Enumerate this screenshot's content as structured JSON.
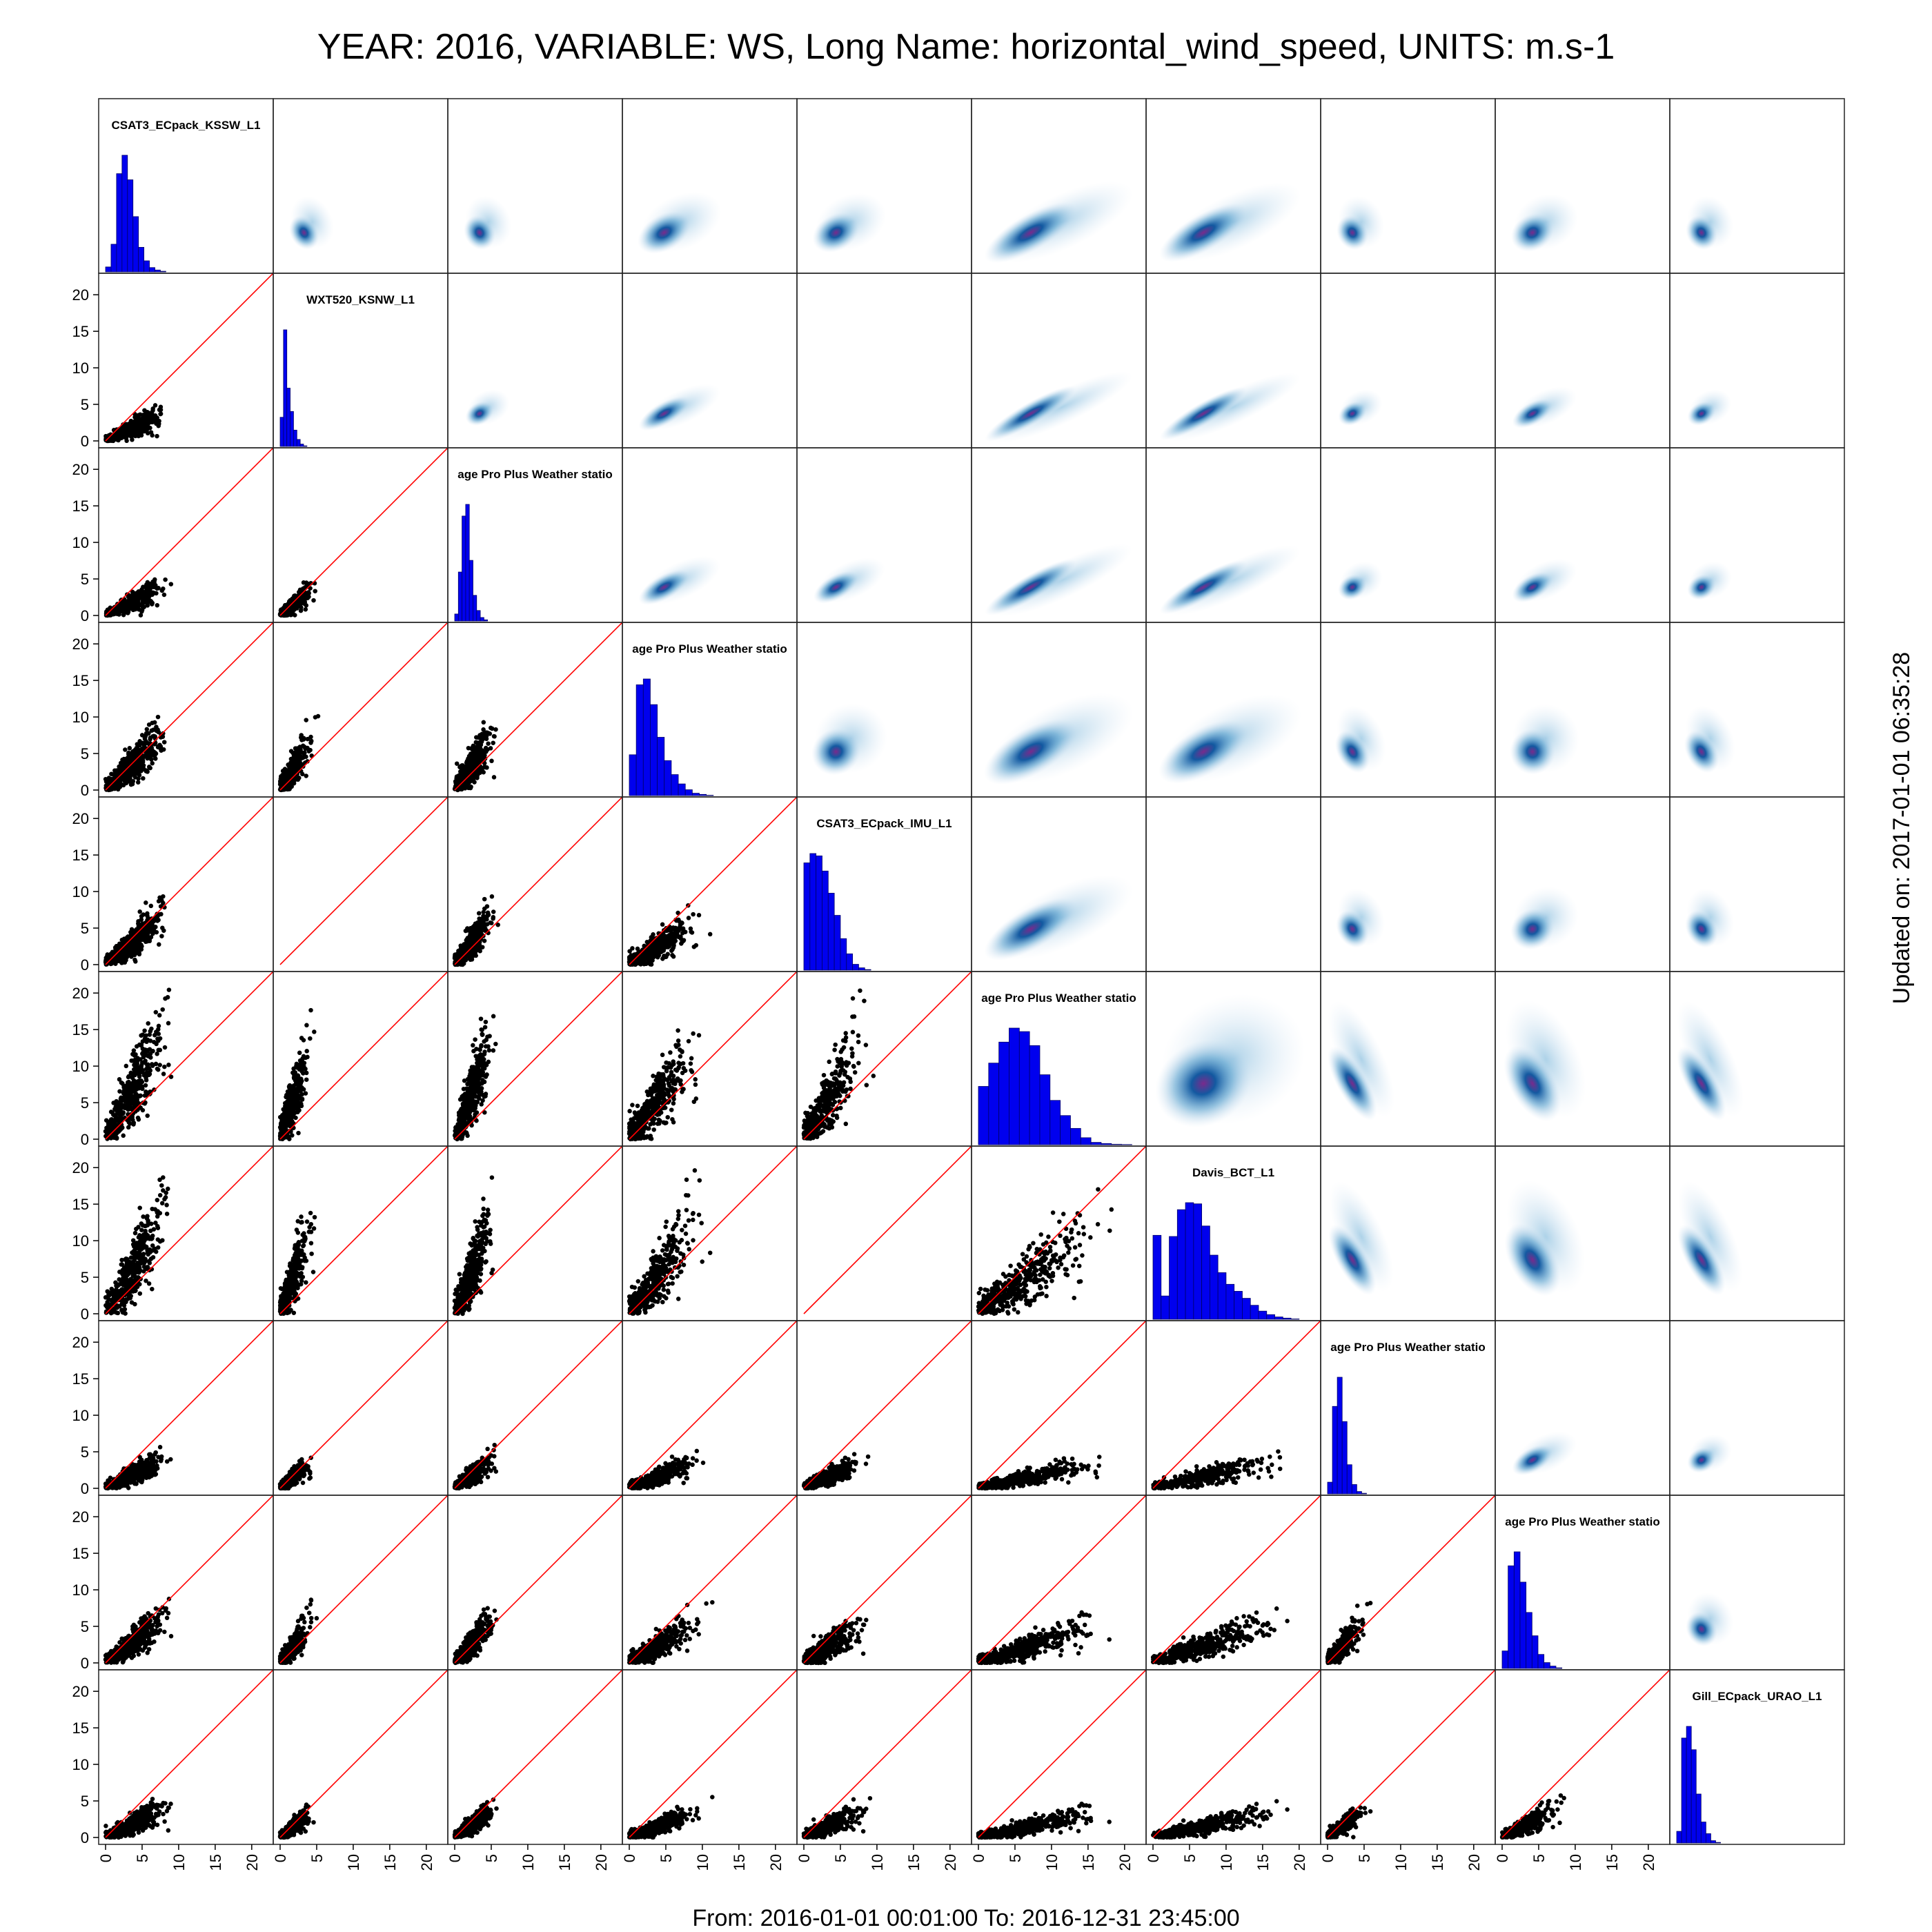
{
  "header": {
    "title": "YEAR: 2016, VARIABLE: WS, Long Name: horizontal_wind_speed, UNITS: m.s-1"
  },
  "footer": {
    "range": "From: 2016-01-01 00:01:00 To: 2016-12-31 23:45:00"
  },
  "side": {
    "updated": "Updated on: 2017-01-01 06:35:28"
  },
  "colors": {
    "histogram_fill": "#0000ee",
    "scatter_point": "#000000",
    "identity_line": "#ff0000",
    "density_low": "#c6dbef",
    "density_mid": "#08519c",
    "density_high": "#7a2a8c"
  },
  "chart_data": {
    "type": "scatter",
    "layout": "scatterplot-matrix",
    "upper_panels": "2d-density",
    "diagonal_panels": "histogram",
    "lower_panels": "scatter with 1:1 line",
    "grid": false,
    "xlim": [
      0,
      22
    ],
    "ylim": [
      0,
      22
    ],
    "x_ticks": [
      0,
      5,
      10,
      15,
      20
    ],
    "y_ticks": [
      0,
      5,
      10,
      15,
      20
    ],
    "variables": [
      "CSAT3_ECpack_KSSW_L1",
      "WXT520_KSNW_L1",
      "age Pro Plus Weather statio",
      "age Pro Plus Weather statio",
      "CSAT3_ECpack_IMU_L1",
      "age Pro Plus Weather statio",
      "Davis_BCT_L1",
      "age Pro Plus Weather statio",
      "age Pro Plus Weather statio",
      "Gill_ECpack_URAO_L1"
    ],
    "typical_max": [
      9.0,
      5.5,
      6.0,
      11.5,
      10.0,
      21.0,
      20.0,
      6.0,
      9.0,
      6.0
    ],
    "mode": [
      3.5,
      1.2,
      2.0,
      3.0,
      2.5,
      5.0,
      6.0,
      1.5,
      2.5,
      1.5
    ],
    "missing_pairs": [
      [
        1,
        4
      ],
      [
        4,
        6
      ]
    ],
    "histograms": [
      [
        0.8,
        4.5,
        16,
        19,
        15,
        9,
        4,
        1.8,
        0.7,
        0.3,
        0.1,
        0
      ],
      [
        25,
        100,
        50,
        30,
        14,
        6,
        2,
        0.5,
        0,
        0,
        0,
        0
      ],
      [
        6,
        42,
        90,
        100,
        52,
        22,
        9,
        3,
        1,
        0,
        0,
        0
      ],
      [
        35,
        95,
        100,
        78,
        50,
        30,
        18,
        10,
        5,
        2,
        1,
        0.3
      ],
      [
        92,
        100,
        98,
        85,
        66,
        47,
        27,
        14,
        5,
        2,
        0.5,
        0
      ],
      [
        50,
        70,
        88,
        100,
        97,
        85,
        60,
        38,
        25,
        14,
        6,
        2,
        1,
        0.4,
        0.2
      ],
      [
        72,
        20,
        71,
        94,
        100,
        99,
        80,
        55,
        40,
        30,
        24,
        18,
        12,
        7,
        4,
        2,
        1,
        0.3
      ],
      [
        10,
        75,
        100,
        62,
        25,
        8,
        2,
        0.5,
        0
      ],
      [
        15,
        88,
        100,
        74,
        48,
        28,
        12,
        5,
        2,
        0.5,
        0
      ],
      [
        10,
        90,
        100,
        80,
        42,
        18,
        8,
        2,
        0.5
      ]
    ]
  }
}
